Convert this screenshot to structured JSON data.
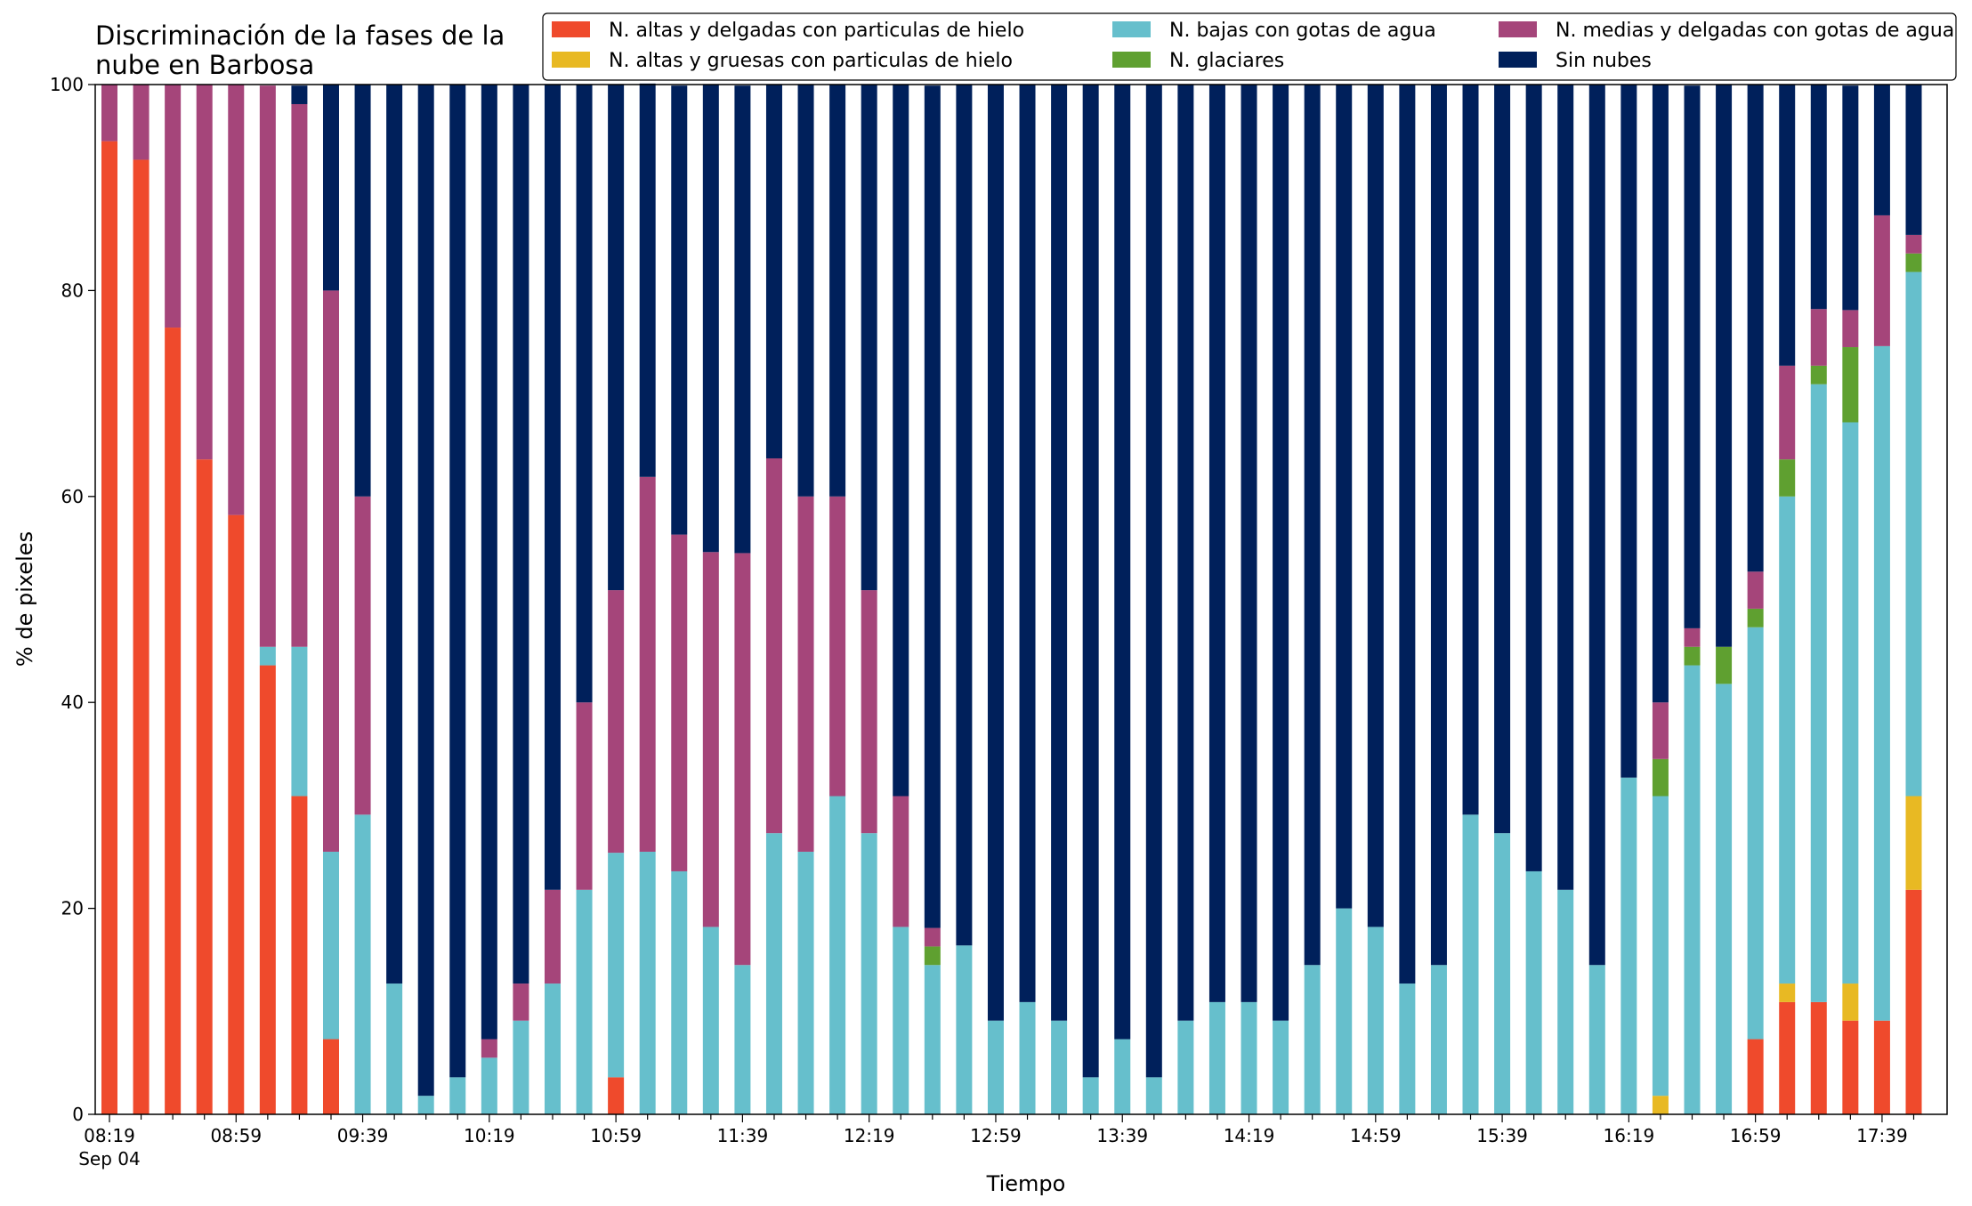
{
  "chart_data": {
    "type": "bar",
    "stacked": true,
    "title": "Discriminación de la fases de la\nnube en Barbosa",
    "xlabel": "Tiempo",
    "ylabel": "% de pixeles",
    "ylim": [
      0,
      100
    ],
    "y_ticks": [
      "0",
      "20",
      "40",
      "60",
      "80",
      "100"
    ],
    "x_tick_labels": [
      "08:19",
      "08:59",
      "09:39",
      "10:19",
      "10:59",
      "11:39",
      "12:19",
      "12:59",
      "13:39",
      "14:19",
      "14:59",
      "15:39",
      "16:19",
      "16:59",
      "17:39"
    ],
    "x_date_label": "Sep 04",
    "x_label_every": 4,
    "grid": false,
    "legend_position": "top-right",
    "categories": [
      "08:19",
      "08:29",
      "08:39",
      "08:49",
      "08:59",
      "09:09",
      "09:19",
      "09:29",
      "09:39",
      "09:49",
      "09:59",
      "10:09",
      "10:19",
      "10:29",
      "10:39",
      "10:49",
      "10:59",
      "11:09",
      "11:19",
      "11:29",
      "11:39",
      "11:49",
      "11:59",
      "12:09",
      "12:19",
      "12:29",
      "12:39",
      "12:49",
      "12:59",
      "13:09",
      "13:19",
      "13:29",
      "13:39",
      "13:49",
      "13:59",
      "14:09",
      "14:19",
      "14:29",
      "14:39",
      "14:49",
      "14:59",
      "15:09",
      "15:19",
      "15:29",
      "15:39",
      "15:49",
      "15:59",
      "16:09",
      "16:19",
      "16:29",
      "16:39",
      "16:49",
      "16:59",
      "17:09",
      "17:19",
      "17:29",
      "17:39",
      "17:49"
    ],
    "series": [
      {
        "name": "N. altas y delgadas con particulas de hielo",
        "color": "#ef4a2c",
        "values": [
          94.5,
          92.7,
          76.4,
          63.6,
          58.2,
          43.6,
          30.9,
          7.3,
          0,
          0,
          0,
          0,
          0,
          0,
          0,
          0,
          3.6,
          0,
          0,
          0,
          0,
          0,
          0,
          0,
          0,
          0,
          0,
          0,
          0,
          0,
          0,
          0,
          0,
          0,
          0,
          0,
          0,
          0,
          0,
          0,
          0,
          0,
          0,
          0,
          0,
          0,
          0,
          0,
          0,
          0,
          0,
          0,
          7.3,
          10.9,
          10.9,
          9.1,
          9.1,
          21.8
        ]
      },
      {
        "name": "N. altas y gruesas con particulas de hielo",
        "color": "#e8b923",
        "values": [
          0,
          0,
          0,
          0,
          0,
          0,
          0,
          0,
          0,
          0,
          0,
          0,
          0,
          0,
          0,
          0,
          0,
          0,
          0,
          0,
          0,
          0,
          0,
          0,
          0,
          0,
          0,
          0,
          0,
          0,
          0,
          0,
          0,
          0,
          0,
          0,
          0,
          0,
          0,
          0,
          0,
          0,
          0,
          0,
          0,
          0,
          0,
          0,
          0,
          1.8,
          0,
          0,
          0,
          1.8,
          0,
          3.6,
          0,
          9.1
        ]
      },
      {
        "name": "N. bajas con gotas de agua",
        "color": "#66bfcc",
        "values": [
          0,
          0,
          0,
          0,
          0,
          1.8,
          14.5,
          18.2,
          29.1,
          12.7,
          1.8,
          3.6,
          5.5,
          9.1,
          12.7,
          21.8,
          21.8,
          25.5,
          23.6,
          18.2,
          14.5,
          27.3,
          25.5,
          30.9,
          27.3,
          18.2,
          14.5,
          16.4,
          9.1,
          10.9,
          9.1,
          3.6,
          7.3,
          3.6,
          9.1,
          10.9,
          10.9,
          9.1,
          14.5,
          20.0,
          18.2,
          12.7,
          14.5,
          29.1,
          27.3,
          23.6,
          21.8,
          14.5,
          32.7,
          29.1,
          43.6,
          41.8,
          40.0,
          47.3,
          60.0,
          54.5,
          65.5,
          50.9
        ]
      },
      {
        "name": "N. glaciares",
        "color": "#5fa030",
        "values": [
          0,
          0,
          0,
          0,
          0,
          0,
          0,
          0,
          0,
          0,
          0,
          0,
          0,
          0,
          0,
          0,
          0,
          0,
          0,
          0,
          0,
          0,
          0,
          0,
          0,
          0,
          1.8,
          0,
          0,
          0,
          0,
          0,
          0,
          0,
          0,
          0,
          0,
          0,
          0,
          0,
          0,
          0,
          0,
          0,
          0,
          0,
          0,
          0,
          0,
          3.6,
          1.8,
          3.6,
          1.8,
          3.6,
          1.8,
          7.3,
          0,
          1.8
        ]
      },
      {
        "name": "N. medias y delgadas con gotas de agua",
        "color": "#a5457a",
        "values": [
          5.5,
          7.3,
          23.6,
          36.4,
          41.8,
          54.5,
          52.7,
          54.5,
          30.9,
          0,
          0,
          0,
          1.8,
          3.6,
          9.1,
          18.2,
          25.5,
          36.4,
          32.7,
          36.4,
          40.0,
          36.4,
          34.5,
          29.1,
          23.6,
          12.7,
          1.8,
          0,
          0,
          0,
          0,
          0,
          0,
          0,
          0,
          0,
          0,
          0,
          0,
          0,
          0,
          0,
          0,
          0,
          0,
          0,
          0,
          0,
          0,
          5.5,
          1.8,
          0,
          3.6,
          9.1,
          5.5,
          3.6,
          12.7,
          1.8
        ]
      },
      {
        "name": "Sin nubes",
        "color": "#00205b",
        "values": [
          0,
          0,
          0,
          0,
          0,
          0,
          1.8,
          20.0,
          40.0,
          87.3,
          98.2,
          96.4,
          92.7,
          87.3,
          78.2,
          60.0,
          49.1,
          38.2,
          43.6,
          45.4,
          45.4,
          36.3,
          40.0,
          40.0,
          49.1,
          69.1,
          81.8,
          83.6,
          90.9,
          89.1,
          90.9,
          96.4,
          92.7,
          96.4,
          90.9,
          89.1,
          89.1,
          90.9,
          85.5,
          80.0,
          81.8,
          87.3,
          85.5,
          70.9,
          72.7,
          76.4,
          78.2,
          85.5,
          67.3,
          60.0,
          52.7,
          54.6,
          47.3,
          27.3,
          21.8,
          21.8,
          12.7,
          14.6
        ]
      }
    ]
  }
}
